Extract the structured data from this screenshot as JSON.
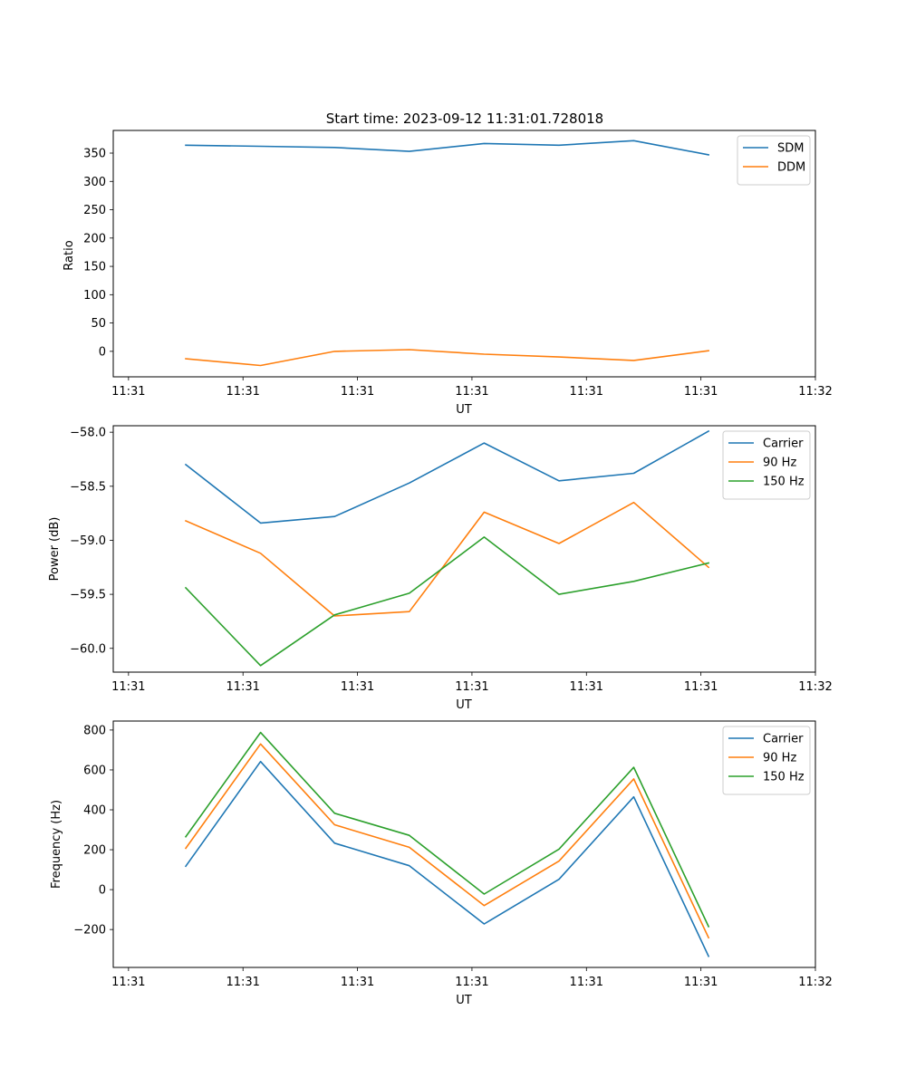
{
  "chart_data": [
    {
      "type": "line",
      "title": "Start time: 2023-09-12 11:31:01.728018",
      "xlabel": "UT",
      "ylabel": "Ratio",
      "xlim": [
        -0.2,
        9.0
      ],
      "ylim": [
        -45,
        390
      ],
      "x_tick_values": [
        0,
        1.5,
        3,
        4.5,
        6,
        7.5,
        9
      ],
      "x_tick_labels": [
        "11:31",
        "11:31",
        "11:31",
        "11:31",
        "11:31",
        "11:31",
        "11:32"
      ],
      "y_ticks": [
        0,
        50,
        100,
        150,
        200,
        250,
        300,
        350
      ],
      "y_tick_labels": [
        "0",
        "50",
        "100",
        "150",
        "200",
        "250",
        "300",
        "350"
      ],
      "legend_position": "top-right",
      "x": [
        0.75,
        1.73,
        2.7,
        3.68,
        4.66,
        5.64,
        6.62,
        7.6
      ],
      "series": [
        {
          "name": "SDM",
          "color": "#1f77b4",
          "values": [
            364,
            362,
            360,
            353,
            367,
            364,
            372,
            347
          ]
        },
        {
          "name": "DDM",
          "color": "#ff7f0e",
          "values": [
            -13,
            -25,
            0,
            3,
            -5,
            -10,
            -16,
            1
          ]
        }
      ]
    },
    {
      "type": "line",
      "title": "",
      "xlabel": "UT",
      "ylabel": "Power (dB)",
      "xlim": [
        -0.2,
        9.0
      ],
      "ylim": [
        -60.22,
        -57.94
      ],
      "x_tick_values": [
        0,
        1.5,
        3,
        4.5,
        6,
        7.5,
        9
      ],
      "x_tick_labels": [
        "11:31",
        "11:31",
        "11:31",
        "11:31",
        "11:31",
        "11:31",
        "11:32"
      ],
      "y_ticks": [
        -60.0,
        -59.5,
        -59.0,
        -58.5,
        -58.0
      ],
      "y_tick_labels": [
        "−60.0",
        "−59.5",
        "−59.0",
        "−58.5",
        "−58.0"
      ],
      "legend_position": "top-right",
      "x": [
        0.75,
        1.73,
        2.7,
        3.68,
        4.66,
        5.64,
        6.62,
        7.6
      ],
      "series": [
        {
          "name": "Carrier",
          "color": "#1f77b4",
          "values": [
            -58.3,
            -58.84,
            -58.78,
            -58.47,
            -58.1,
            -58.45,
            -58.38,
            -57.99
          ]
        },
        {
          "name": "90 Hz",
          "color": "#ff7f0e",
          "values": [
            -58.82,
            -59.12,
            -59.7,
            -59.66,
            -58.74,
            -59.03,
            -58.65,
            -59.25
          ]
        },
        {
          "name": "150 Hz",
          "color": "#2ca02c",
          "values": [
            -59.44,
            -60.16,
            -59.69,
            -59.49,
            -58.97,
            -59.5,
            -59.38,
            -59.21
          ]
        }
      ]
    },
    {
      "type": "line",
      "title": "",
      "xlabel": "UT",
      "ylabel": "Frequency (Hz)",
      "xlim": [
        -0.2,
        9.0
      ],
      "ylim": [
        -390,
        845
      ],
      "x_tick_values": [
        0,
        1.5,
        3,
        4.5,
        6,
        7.5,
        9
      ],
      "x_tick_labels": [
        "11:31",
        "11:31",
        "11:31",
        "11:31",
        "11:31",
        "11:31",
        "11:32"
      ],
      "y_ticks": [
        -200,
        0,
        200,
        400,
        600,
        800
      ],
      "y_tick_labels": [
        "−200",
        "0",
        "200",
        "400",
        "600",
        "800"
      ],
      "legend_position": "top-right",
      "x": [
        0.75,
        1.73,
        2.7,
        3.68,
        4.66,
        5.64,
        6.62,
        7.6
      ],
      "series": [
        {
          "name": "Carrier",
          "color": "#1f77b4",
          "values": [
            117,
            642,
            233,
            120,
            -172,
            52,
            465,
            -334
          ]
        },
        {
          "name": "90 Hz",
          "color": "#ff7f0e",
          "values": [
            207,
            730,
            325,
            212,
            -80,
            143,
            555,
            -241
          ]
        },
        {
          "name": "150 Hz",
          "color": "#2ca02c",
          "values": [
            265,
            788,
            383,
            272,
            -22,
            203,
            613,
            -185
          ]
        }
      ]
    }
  ]
}
